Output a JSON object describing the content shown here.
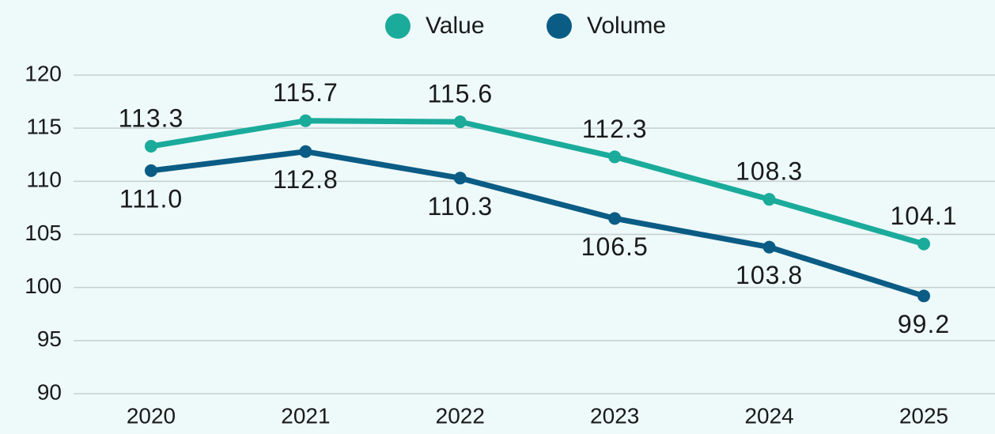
{
  "chart_data": {
    "type": "line",
    "categories": [
      "2020",
      "2021",
      "2022",
      "2023",
      "2024",
      "2025"
    ],
    "series": [
      {
        "name": "Value",
        "color": "#1aab9b",
        "values": [
          113.3,
          115.7,
          115.6,
          112.3,
          108.3,
          104.1
        ],
        "value_labels": [
          "113.3",
          "115.7",
          "115.6",
          "112.3",
          "108.3",
          "104.1"
        ]
      },
      {
        "name": "Volume",
        "color": "#0a5c85",
        "values": [
          111.0,
          112.8,
          110.3,
          106.5,
          103.8,
          99.2
        ],
        "value_labels": [
          "111.0",
          "112.8",
          "110.3",
          "106.5",
          "103.8",
          "99.2"
        ]
      }
    ],
    "ylim": [
      90,
      120
    ],
    "yticks": [
      90,
      95,
      100,
      105,
      110,
      115,
      120
    ],
    "grid": true,
    "legend": "top"
  }
}
